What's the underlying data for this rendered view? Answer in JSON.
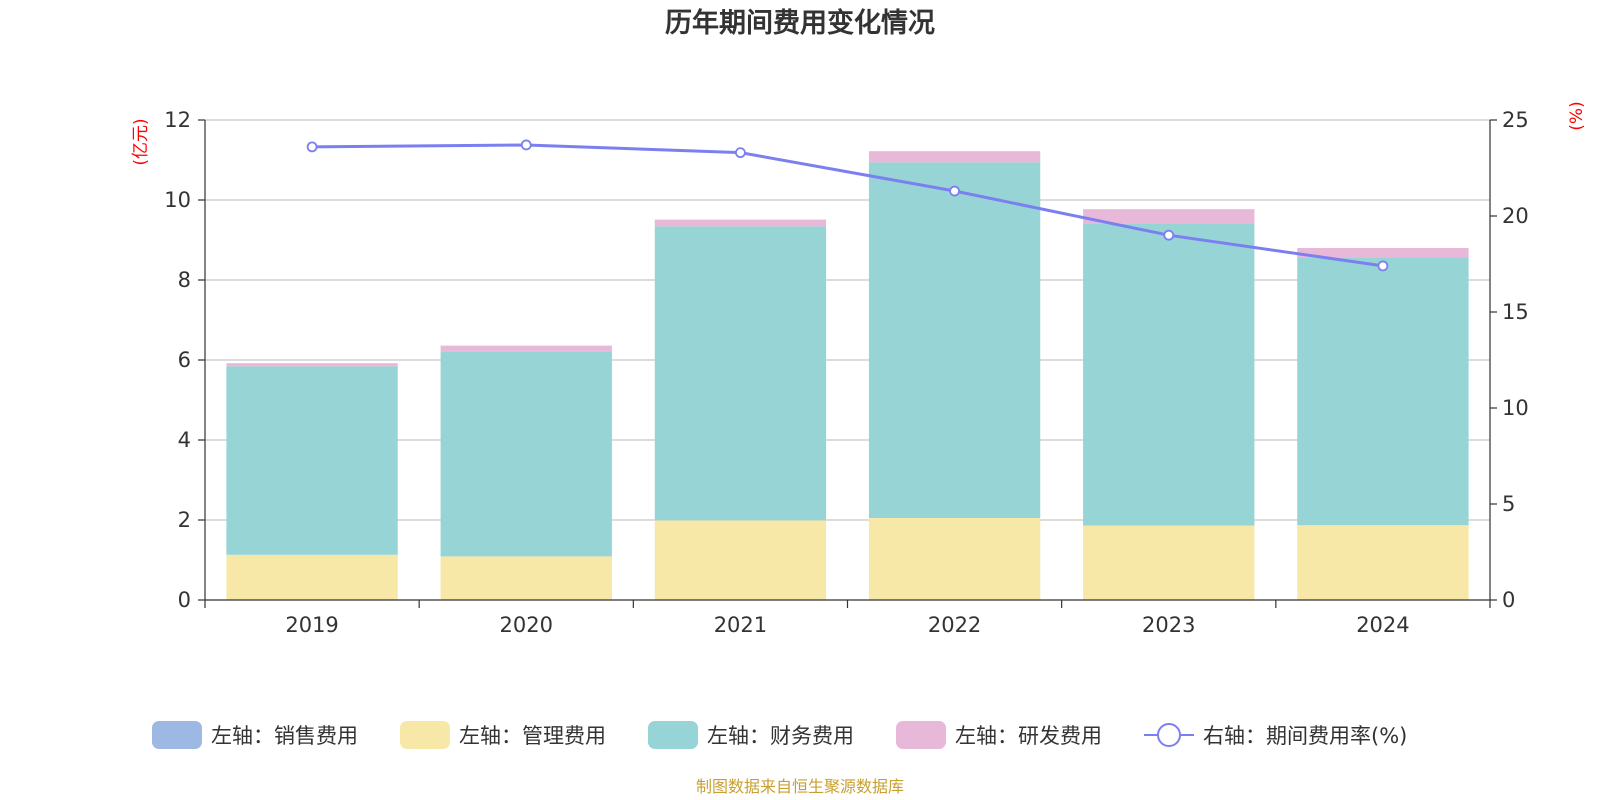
{
  "chart_data": {
    "type": "bar",
    "stacked": true,
    "title": "历年期间费用变化情况",
    "categories": [
      "2019",
      "2020",
      "2021",
      "2022",
      "2023",
      "2024"
    ],
    "left_axis": {
      "unit_label": "(亿元)",
      "min": 0,
      "max": 12,
      "ticks": [
        0,
        2,
        4,
        6,
        8,
        10,
        12
      ]
    },
    "right_axis": {
      "unit_label": "(%)",
      "min": 0,
      "max": 25,
      "ticks": [
        0,
        5,
        10,
        15,
        20,
        25
      ]
    },
    "series": [
      {
        "name": "左轴：销售费用",
        "axis": "left",
        "kind": "bar",
        "color": "#9db8e2",
        "values": [
          0,
          0,
          0,
          0,
          0,
          0
        ]
      },
      {
        "name": "左轴：管理费用",
        "axis": "left",
        "kind": "bar",
        "color": "#f7e8a8",
        "values": [
          1.13,
          1.09,
          1.99,
          2.05,
          1.86,
          1.87
        ]
      },
      {
        "name": "左轴：财务费用",
        "axis": "left",
        "kind": "bar",
        "color": "#97d4d5",
        "values": [
          4.71,
          5.12,
          7.35,
          8.89,
          7.56,
          6.68
        ]
      },
      {
        "name": "左轴：研发费用",
        "axis": "left",
        "kind": "bar",
        "color": "#e8b8d9",
        "values": [
          0.08,
          0.15,
          0.17,
          0.28,
          0.35,
          0.25
        ]
      },
      {
        "name": "右轴：期间费用率(%)",
        "axis": "right",
        "kind": "line",
        "color": "#7b7ff0",
        "values": [
          23.6,
          23.7,
          23.3,
          21.3,
          19.0,
          17.4
        ]
      }
    ],
    "legend_position": "bottom",
    "grid": true
  },
  "footer": "制图数据来自恒生聚源数据库"
}
